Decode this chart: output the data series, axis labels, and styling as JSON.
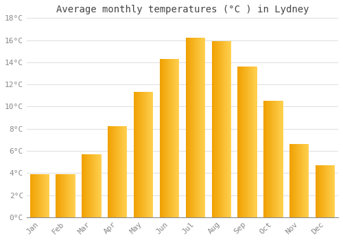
{
  "title": "Average monthly temperatures (°C ) in Lydney",
  "months": [
    "Jan",
    "Feb",
    "Mar",
    "Apr",
    "May",
    "Jun",
    "Jul",
    "Aug",
    "Sep",
    "Oct",
    "Nov",
    "Dec"
  ],
  "values": [
    3.9,
    3.9,
    5.7,
    8.2,
    11.3,
    14.3,
    16.2,
    15.9,
    13.6,
    10.5,
    6.6,
    4.7
  ],
  "bar_color_left": "#F0A000",
  "bar_color_right": "#FFD050",
  "background_color": "#FFFFFF",
  "grid_color": "#DDDDDD",
  "ylim": [
    0,
    18
  ],
  "yticks": [
    0,
    2,
    4,
    6,
    8,
    10,
    12,
    14,
    16,
    18
  ],
  "ytick_labels": [
    "0°C",
    "2°C",
    "4°C",
    "6°C",
    "8°C",
    "10°C",
    "12°C",
    "14°C",
    "16°C",
    "18°C"
  ],
  "title_fontsize": 10,
  "tick_fontsize": 8,
  "title_color": "#444444",
  "tick_color": "#888888",
  "bar_width": 0.75
}
